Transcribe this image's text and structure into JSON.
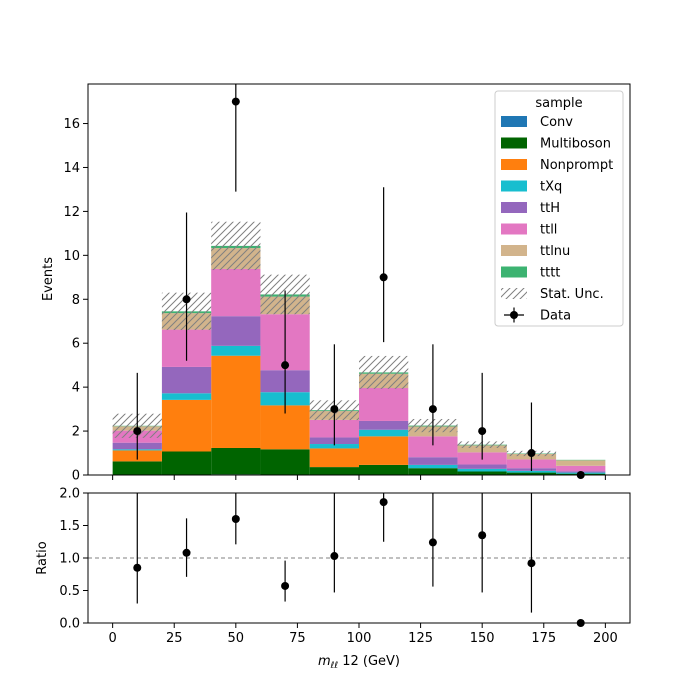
{
  "chart_data": {
    "type": "bar",
    "stacked": true,
    "bin_edges": [
      0,
      20,
      40,
      60,
      80,
      100,
      120,
      140,
      160,
      180,
      200
    ],
    "bin_centers": [
      10,
      30,
      50,
      70,
      90,
      110,
      130,
      150,
      170,
      190
    ],
    "xlabel": "m_{ℓℓ} 12 (GeV)",
    "xlabel_main": "m",
    "xlabel_sub": "ℓℓ",
    "xlabel_rest": " 12 (GeV)",
    "xlim": [
      -10,
      210
    ],
    "x_ticks": [
      0,
      25,
      50,
      75,
      100,
      125,
      150,
      175,
      200
    ],
    "main_panel": {
      "ylabel": "Events",
      "ylim": [
        0,
        17.8
      ],
      "y_ticks": [
        0,
        2,
        4,
        6,
        8,
        10,
        12,
        14,
        16
      ]
    },
    "ratio_panel": {
      "ylabel": "Ratio",
      "ylim": [
        0,
        2.0
      ],
      "y_ticks": [
        0.0,
        0.5,
        1.0,
        1.5,
        2.0
      ],
      "reference_line": 1.0
    },
    "legend": {
      "title": "sample",
      "position": "top-right"
    },
    "series": [
      {
        "name": "Conv",
        "color": "#1f77b4",
        "values": [
          0.02,
          0.02,
          0.03,
          0.02,
          0.01,
          0.01,
          0.01,
          0.01,
          0.01,
          0.01
        ]
      },
      {
        "name": "Multiboson",
        "color": "#006400",
        "values": [
          0.6,
          1.05,
          1.2,
          1.15,
          0.35,
          0.45,
          0.3,
          0.15,
          0.1,
          0.05
        ]
      },
      {
        "name": "Nonprompt",
        "color": "#ff7f0e",
        "values": [
          0.5,
          2.35,
          4.2,
          2.0,
          0.85,
          1.3,
          0.0,
          0.0,
          0.0,
          0.0
        ]
      },
      {
        "name": "tXq",
        "color": "#17becf",
        "values": [
          0.05,
          0.3,
          0.45,
          0.6,
          0.2,
          0.3,
          0.15,
          0.12,
          0.08,
          0.05
        ]
      },
      {
        "name": "ttH",
        "color": "#9467bd",
        "values": [
          0.3,
          1.2,
          1.35,
          1.0,
          0.3,
          0.4,
          0.35,
          0.2,
          0.12,
          0.06
        ]
      },
      {
        "name": "ttll",
        "color": "#e377c2",
        "values": [
          0.55,
          1.7,
          2.15,
          2.55,
          0.8,
          1.5,
          0.95,
          0.55,
          0.4,
          0.25
        ]
      },
      {
        "name": "ttlnu",
        "color": "#d2b48c",
        "values": [
          0.2,
          0.75,
          0.95,
          0.8,
          0.4,
          0.65,
          0.45,
          0.32,
          0.25,
          0.25
        ]
      },
      {
        "name": "tttt",
        "color": "#3cb371",
        "values": [
          0.02,
          0.08,
          0.1,
          0.1,
          0.04,
          0.06,
          0.04,
          0.03,
          0.02,
          0.02
        ]
      }
    ],
    "stat_unc": {
      "name": "Stat. Unc.",
      "hatch_color": "#808080",
      "values": [
        0.55,
        0.85,
        1.1,
        0.9,
        0.45,
        0.75,
        0.3,
        0.15,
        0.12,
        0.0
      ]
    },
    "data": {
      "name": "Data",
      "color": "#000000",
      "values": [
        2,
        8,
        17,
        5,
        3,
        9,
        3,
        2,
        1,
        0
      ],
      "err_low": [
        1.3,
        2.8,
        4.1,
        2.2,
        1.65,
        2.95,
        1.65,
        1.3,
        0.82,
        0.0
      ],
      "err_high": [
        2.65,
        3.95,
        5.2,
        3.4,
        2.95,
        4.1,
        2.95,
        2.65,
        2.3,
        0.0
      ]
    },
    "ratio": {
      "values": [
        0.85,
        1.08,
        1.6,
        0.57,
        1.03,
        1.86,
        1.24,
        1.35,
        0.92,
        0.0
      ],
      "err_low": [
        0.55,
        0.37,
        0.39,
        0.24,
        0.56,
        0.61,
        0.68,
        0.88,
        0.76,
        0.0
      ],
      "err_high": [
        1.15,
        0.53,
        0.4,
        0.39,
        0.97,
        0.64,
        1.06,
        1.0,
        1.08,
        0.0
      ]
    }
  }
}
